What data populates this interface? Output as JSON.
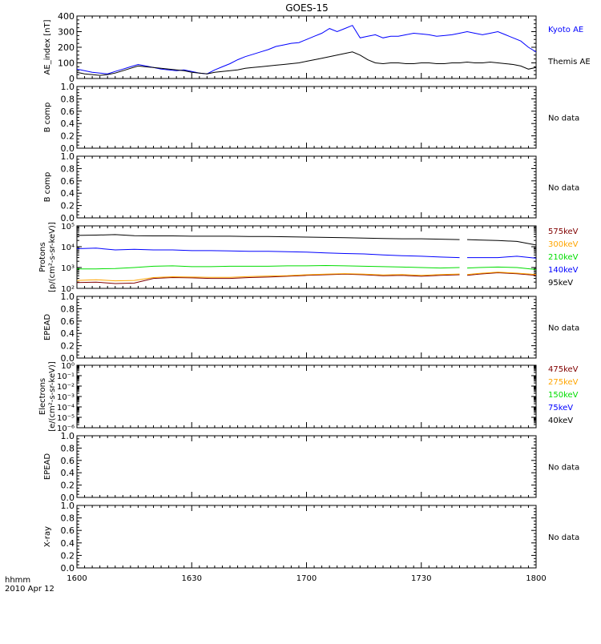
{
  "title": "GOES-15",
  "x_axis": {
    "ticks": [
      "1600",
      "1630",
      "1700",
      "1730",
      "1800"
    ],
    "corner_label_1": "hhmm",
    "corner_label_2": "2010 Apr 12"
  },
  "no_data_label": "No data",
  "chart_data": [
    {
      "type": "line",
      "ylabel": "AE_index [nT]",
      "ylim": [
        0,
        400
      ],
      "yticks": [
        "0",
        "100",
        "200",
        "300",
        "400"
      ],
      "x": [
        "16:00",
        "16:02",
        "16:04",
        "16:06",
        "16:08",
        "16:10",
        "16:12",
        "16:14",
        "16:16",
        "16:18",
        "16:20",
        "16:22",
        "16:24",
        "16:26",
        "16:28",
        "16:30",
        "16:32",
        "16:34",
        "16:36",
        "16:38",
        "16:40",
        "16:42",
        "16:44",
        "16:46",
        "16:48",
        "16:50",
        "16:52",
        "16:54",
        "16:56",
        "16:58",
        "17:00",
        "17:02",
        "17:04",
        "17:06",
        "17:08",
        "17:10",
        "17:12",
        "17:14",
        "17:16",
        "17:18",
        "17:20",
        "17:22",
        "17:24",
        "17:26",
        "17:28",
        "17:30",
        "17:32",
        "17:34",
        "17:36",
        "17:38",
        "17:40",
        "17:42",
        "17:44",
        "17:46",
        "17:48",
        "17:50",
        "17:52",
        "17:54",
        "17:56",
        "17:58",
        "18:00"
      ],
      "series": [
        {
          "name": "Kyoto AE",
          "color": "#0000ff",
          "values": [
            60,
            50,
            40,
            35,
            30,
            45,
            60,
            75,
            90,
            80,
            70,
            60,
            55,
            50,
            55,
            45,
            35,
            30,
            55,
            75,
            95,
            120,
            140,
            155,
            170,
            185,
            205,
            215,
            225,
            230,
            250,
            270,
            290,
            320,
            300,
            320,
            340,
            260,
            270,
            280,
            260,
            270,
            270,
            280,
            290,
            285,
            280,
            270,
            275,
            280,
            290,
            300,
            290,
            280,
            290,
            300,
            280,
            260,
            240,
            200,
            170
          ]
        },
        {
          "name": "Themis AE",
          "color": "#000000",
          "values": [
            40,
            30,
            25,
            20,
            25,
            35,
            50,
            65,
            80,
            75,
            70,
            65,
            60,
            55,
            50,
            40,
            35,
            30,
            40,
            45,
            50,
            55,
            65,
            70,
            75,
            80,
            85,
            90,
            95,
            100,
            110,
            120,
            130,
            140,
            150,
            160,
            170,
            150,
            120,
            100,
            95,
            100,
            100,
            95,
            95,
            100,
            100,
            95,
            95,
            100,
            100,
            105,
            100,
            100,
            105,
            100,
            95,
            90,
            80,
            60,
            70
          ]
        }
      ]
    },
    {
      "type": "line",
      "ylabel": "B comp",
      "ylim": [
        0,
        1
      ],
      "yticks": [
        "0.0",
        "0.2",
        "0.4",
        "0.6",
        "0.8",
        "1.0"
      ],
      "series": [],
      "status": "No data"
    },
    {
      "type": "line",
      "ylabel": "B comp",
      "ylim": [
        0,
        1
      ],
      "yticks": [
        "0.0",
        "0.2",
        "0.4",
        "0.6",
        "0.8",
        "1.0"
      ],
      "series": [],
      "status": "No data"
    },
    {
      "type": "line",
      "ylabel": "Protons",
      "ylabel2": "[p/(cm²-s-sr-keV)]",
      "log_scale": true,
      "ylim": [
        100,
        100000
      ],
      "yticks": [
        "10²",
        "10³",
        "10⁴",
        "10⁵"
      ],
      "data_gap": [
        "17:40",
        "17:42"
      ],
      "x": [
        "16:00",
        "16:05",
        "16:10",
        "16:15",
        "16:20",
        "16:25",
        "16:30",
        "16:35",
        "16:40",
        "16:45",
        "16:50",
        "16:55",
        "17:00",
        "17:05",
        "17:10",
        "17:15",
        "17:20",
        "17:25",
        "17:30",
        "17:35",
        "17:40",
        "17:42",
        "17:45",
        "17:50",
        "17:55",
        "18:00"
      ],
      "series": [
        {
          "name": "575keV",
          "color": "#800000",
          "values": [
            190,
            200,
            170,
            180,
            300,
            330,
            320,
            300,
            300,
            330,
            350,
            380,
            420,
            450,
            480,
            450,
            400,
            420,
            380,
            420,
            450,
            420,
            480,
            560,
            500,
            420
          ]
        },
        {
          "name": "300keV",
          "color": "#ffa500",
          "values": [
            240,
            260,
            230,
            240,
            330,
            360,
            350,
            340,
            340,
            370,
            390,
            410,
            450,
            480,
            510,
            480,
            440,
            460,
            420,
            460,
            490,
            460,
            520,
            600,
            540,
            460
          ]
        },
        {
          "name": "210keV",
          "color": "#00dd00",
          "values": [
            850,
            860,
            900,
            1000,
            1150,
            1200,
            1100,
            1100,
            1150,
            1150,
            1150,
            1200,
            1200,
            1250,
            1200,
            1150,
            1100,
            1050,
            1000,
            950,
            1000,
            950,
            1000,
            1050,
            1000,
            800
          ]
        },
        {
          "name": "140keV",
          "color": "#0000ff",
          "values": [
            8000,
            8500,
            7000,
            7500,
            7000,
            7000,
            6500,
            6500,
            6300,
            6000,
            6000,
            5800,
            5500,
            5000,
            4700,
            4500,
            4000,
            3700,
            3500,
            3200,
            3000,
            3000,
            3000,
            3000,
            3500,
            2800
          ]
        },
        {
          "name": "95keV",
          "color": "#000000",
          "values": [
            35000,
            36000,
            38000,
            34000,
            33000,
            33000,
            32000,
            32000,
            32000,
            31000,
            31000,
            30000,
            29000,
            28000,
            27000,
            26000,
            25000,
            24000,
            24000,
            23000,
            22000,
            22000,
            21000,
            20000,
            18000,
            12000
          ]
        }
      ]
    },
    {
      "type": "line",
      "ylabel": "EPEAD",
      "ylim": [
        0,
        1
      ],
      "yticks": [
        "0.0",
        "0.2",
        "0.4",
        "0.6",
        "0.8",
        "1.0"
      ],
      "series": [],
      "status": "No data"
    },
    {
      "type": "line",
      "ylabel": "Electrons",
      "ylabel2": "[e/(cm²-s-sr-keV)]",
      "log_scale": true,
      "ylim": [
        1e-06,
        1
      ],
      "yticks": [
        "10⁻⁶",
        "10⁻⁵",
        "10⁻⁴",
        "10⁻³",
        "10⁻²",
        "10⁻¹",
        "10⁰"
      ],
      "legend": [
        {
          "name": "475keV",
          "color": "#800000"
        },
        {
          "name": "275keV",
          "color": "#ffa500"
        },
        {
          "name": "150keV",
          "color": "#00dd00"
        },
        {
          "name": "75keV",
          "color": "#0000ff"
        },
        {
          "name": "40keV",
          "color": "#000000"
        }
      ],
      "series": []
    },
    {
      "type": "line",
      "ylabel": "EPEAD",
      "ylim": [
        0,
        1
      ],
      "yticks": [
        "0.0",
        "0.2",
        "0.4",
        "0.6",
        "0.8",
        "1.0"
      ],
      "series": [],
      "status": "No data"
    },
    {
      "type": "line",
      "ylabel": "X-ray",
      "ylim": [
        0,
        1
      ],
      "yticks": [
        "0.0",
        "0.2",
        "0.4",
        "0.6",
        "0.8",
        "1.0"
      ],
      "series": [],
      "status": "No data"
    }
  ]
}
